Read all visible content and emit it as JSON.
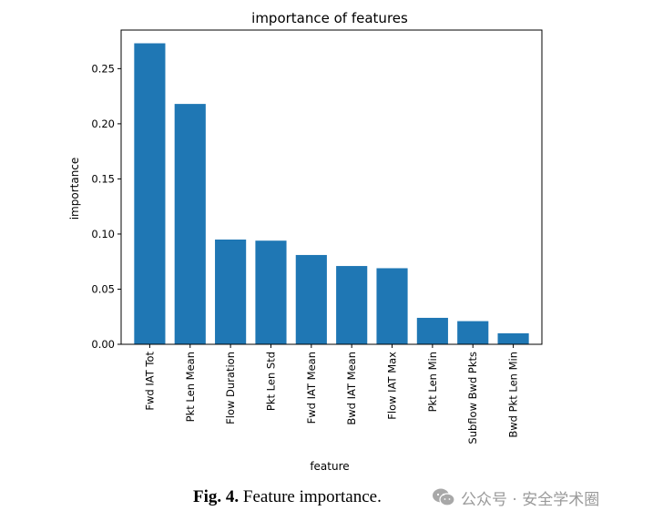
{
  "chart_data": {
    "type": "bar",
    "title": "importance of features",
    "xlabel": "feature",
    "ylabel": "importance",
    "categories": [
      "Fwd IAT Tot",
      "Pkt Len Mean",
      "Flow Duration",
      "Pkt Len Std",
      "Fwd IAT Mean",
      "Bwd IAT Mean",
      "Flow IAT Max",
      "Pkt Len Min",
      "Subflow Bwd Pkts",
      "Bwd Pkt Len Min"
    ],
    "values": [
      0.273,
      0.218,
      0.095,
      0.094,
      0.081,
      0.071,
      0.069,
      0.024,
      0.021,
      0.01
    ],
    "ylim": [
      0,
      0.285
    ],
    "yticks": [
      "0.00",
      "0.05",
      "0.10",
      "0.15",
      "0.20",
      "0.25"
    ],
    "bar_color": "#1f77b4",
    "grid": false
  },
  "caption": {
    "label": "Fig. 4.",
    "text": "Feature importance."
  },
  "watermark": {
    "icon": "wechat-icon",
    "text": "公众号 · 安全学术圈"
  }
}
